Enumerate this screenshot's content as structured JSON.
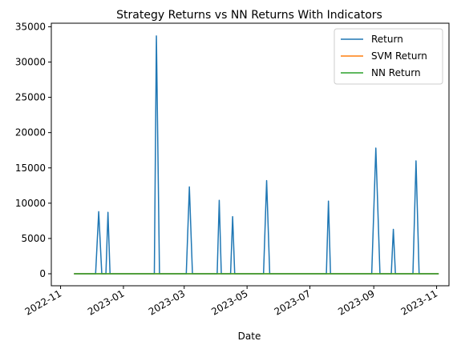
{
  "chart_data": {
    "type": "line",
    "title": "Strategy Returns vs NN Returns With Indicators",
    "xlabel": "Date",
    "ylabel": "",
    "x_type": "date",
    "xlim": [
      "2022-10-23",
      "2023-11-13"
    ],
    "ylim": [
      -1700,
      35500
    ],
    "grid": false,
    "legend_position": "top-right",
    "x_ticks": [
      {
        "value": "2022-11-01",
        "label": "2022-11"
      },
      {
        "value": "2023-01-01",
        "label": "2023-01"
      },
      {
        "value": "2023-03-01",
        "label": "2023-03"
      },
      {
        "value": "2023-05-01",
        "label": "2023-05"
      },
      {
        "value": "2023-07-01",
        "label": "2023-07"
      },
      {
        "value": "2023-09-01",
        "label": "2023-09"
      },
      {
        "value": "2023-11-01",
        "label": "2023-11"
      }
    ],
    "y_ticks": [
      {
        "value": 0,
        "label": "0"
      },
      {
        "value": 5000,
        "label": "5000"
      },
      {
        "value": 10000,
        "label": "10000"
      },
      {
        "value": 15000,
        "label": "15000"
      },
      {
        "value": 20000,
        "label": "20000"
      },
      {
        "value": 25000,
        "label": "25000"
      },
      {
        "value": 30000,
        "label": "30000"
      },
      {
        "value": 35000,
        "label": "35000"
      }
    ],
    "series": [
      {
        "name": "Return",
        "color": "#1f77b4",
        "points": [
          [
            "2022-11-14",
            0
          ],
          [
            "2022-12-05",
            0
          ],
          [
            "2022-12-08",
            8800
          ],
          [
            "2022-12-11",
            0
          ],
          [
            "2022-12-15",
            0
          ],
          [
            "2022-12-17",
            8700
          ],
          [
            "2022-12-19",
            0
          ],
          [
            "2023-01-31",
            0
          ],
          [
            "2023-02-02",
            33700
          ],
          [
            "2023-02-05",
            0
          ],
          [
            "2023-03-03",
            0
          ],
          [
            "2023-03-06",
            12300
          ],
          [
            "2023-03-09",
            0
          ],
          [
            "2023-04-02",
            0
          ],
          [
            "2023-04-04",
            10400
          ],
          [
            "2023-04-06",
            0
          ],
          [
            "2023-04-15",
            0
          ],
          [
            "2023-04-17",
            8100
          ],
          [
            "2023-04-19",
            0
          ],
          [
            "2023-05-17",
            0
          ],
          [
            "2023-05-20",
            13200
          ],
          [
            "2023-05-23",
            0
          ],
          [
            "2023-07-17",
            0
          ],
          [
            "2023-07-19",
            10300
          ],
          [
            "2023-07-21",
            0
          ],
          [
            "2023-08-30",
            0
          ],
          [
            "2023-09-03",
            17800
          ],
          [
            "2023-09-07",
            0
          ],
          [
            "2023-09-18",
            0
          ],
          [
            "2023-09-20",
            6300
          ],
          [
            "2023-09-22",
            0
          ],
          [
            "2023-10-09",
            0
          ],
          [
            "2023-10-12",
            16000
          ],
          [
            "2023-10-15",
            0
          ],
          [
            "2023-11-03",
            0
          ]
        ]
      },
      {
        "name": "SVM Return",
        "color": "#ff7f0e",
        "points": [
          [
            "2022-11-14",
            0
          ],
          [
            "2023-11-03",
            0
          ]
        ]
      },
      {
        "name": "NN Return",
        "color": "#2ca02c",
        "points": [
          [
            "2022-11-14",
            0
          ],
          [
            "2023-11-03",
            0
          ]
        ]
      }
    ]
  }
}
